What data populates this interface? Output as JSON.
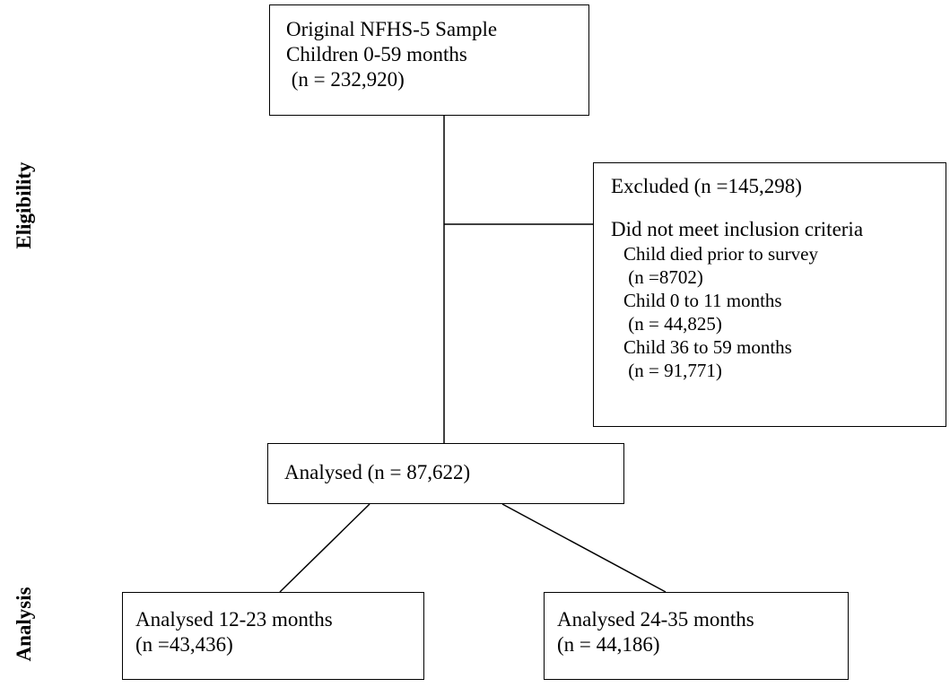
{
  "original": {
    "line1": "Original NFHS-5 Sample",
    "line2": "Children 0-59 months",
    "line3": " (n = 232,920)"
  },
  "excluded": {
    "title": "Excluded (n =145,298)",
    "criteria_heading": "Did not meet inclusion criteria",
    "items": [
      {
        "label": "Child died prior to survey",
        "count": " (n =8702)"
      },
      {
        "label": "Child 0 to 11 months",
        "count": " (n = 44,825)"
      },
      {
        "label": "Child 36 to 59 months",
        "count": " (n = 91,771)"
      }
    ]
  },
  "analysed": {
    "label": "Analysed (n = 87,622)"
  },
  "analysed_12_23": {
    "line1": "Analysed 12-23 months",
    "line2": "(n =43,436)"
  },
  "analysed_24_35": {
    "line1": "Analysed 24-35 months",
    "line2": "(n = 44,186)"
  },
  "side_labels": {
    "eligibility": "Eligibility",
    "analysis": "Analysis"
  }
}
